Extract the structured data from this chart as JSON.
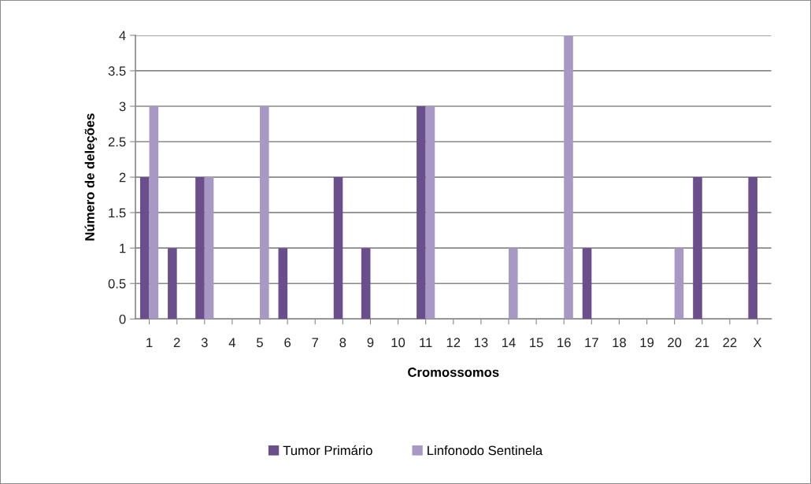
{
  "chart_data": {
    "type": "bar",
    "xlabel": "Cromossomos",
    "ylabel": "Número de deleções",
    "categories": [
      "1",
      "2",
      "3",
      "4",
      "5",
      "6",
      "7",
      "8",
      "9",
      "10",
      "11",
      "12",
      "13",
      "14",
      "15",
      "16",
      "17",
      "18",
      "19",
      "20",
      "21",
      "22",
      "X"
    ],
    "series": [
      {
        "name": "Tumor Primário",
        "color": "#6a4f8c",
        "values": [
          2,
          1,
          2,
          0,
          0,
          1,
          0,
          2,
          1,
          0,
          3,
          0,
          0,
          0,
          0,
          0,
          1,
          0,
          0,
          0,
          2,
          0,
          2
        ]
      },
      {
        "name": "Linfonodo Sentinela",
        "color": "#a899c4",
        "values": [
          3,
          0,
          2,
          0,
          3,
          0,
          0,
          0,
          0,
          0,
          3,
          0,
          0,
          1,
          0,
          4,
          0,
          0,
          0,
          1,
          0,
          0,
          0
        ]
      }
    ],
    "ylim": [
      0,
      4
    ],
    "yticks": [
      0,
      0.5,
      1,
      1.5,
      2,
      2.5,
      3,
      3.5,
      4
    ],
    "grid": "y",
    "legend": "bottom"
  }
}
